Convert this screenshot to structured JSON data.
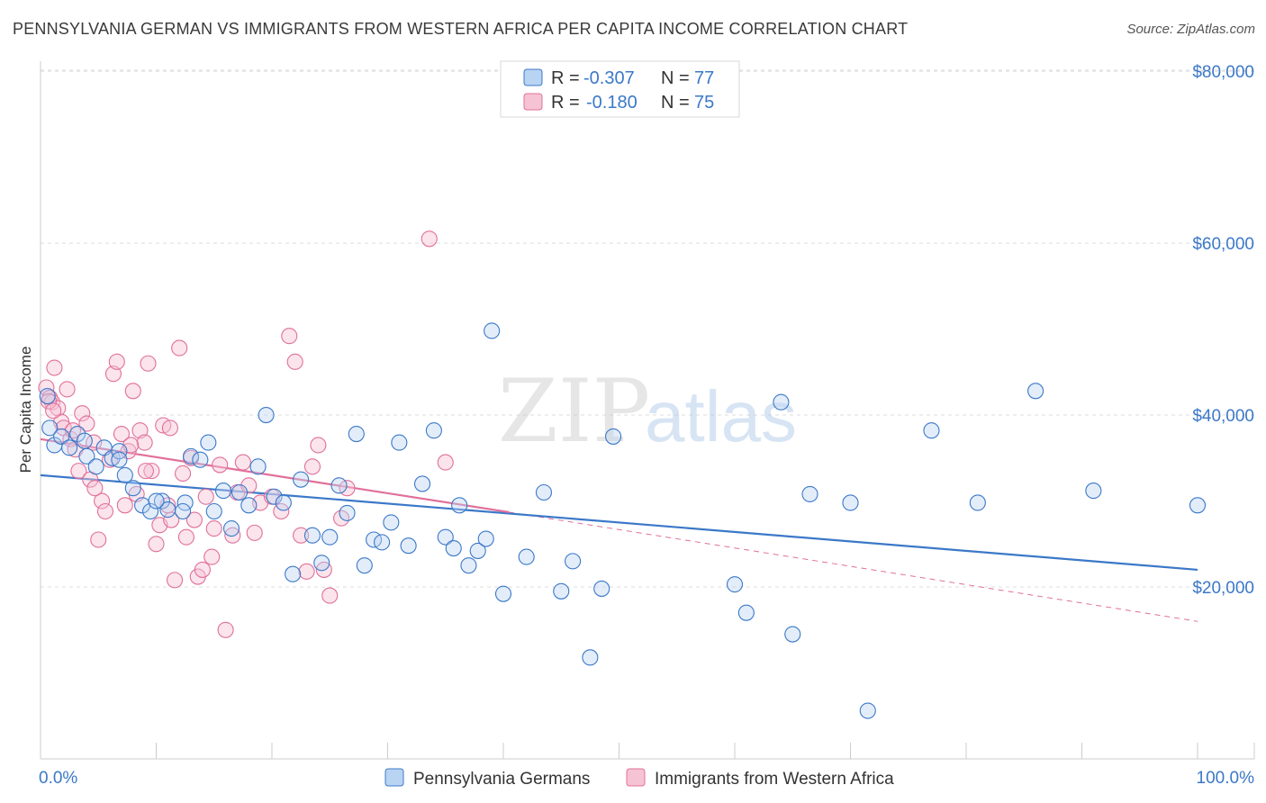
{
  "title": "PENNSYLVANIA GERMAN VS IMMIGRANTS FROM WESTERN AFRICA PER CAPITA INCOME CORRELATION CHART",
  "source": "Source: ZipAtlas.com",
  "watermark": {
    "zip": "ZIP",
    "atlas": "atlas"
  },
  "colors": {
    "blue": "#3b78c8",
    "blue_fill": "#b9d3f2",
    "pink": "#e0709a",
    "pink_fill": "#f6c3d4",
    "grid": "#dddddd"
  },
  "legend": {
    "r_label": "R =",
    "n_label": "N =",
    "rows": [
      {
        "r": "-0.307",
        "n": "77"
      },
      {
        "r": "-0.180",
        "n": "75"
      }
    ]
  },
  "chart_data": {
    "type": "scatter",
    "title": "PENNSYLVANIA GERMAN VS IMMIGRANTS FROM WESTERN AFRICA PER CAPITA INCOME CORRELATION CHART",
    "xlabel": "",
    "ylabel": "Per Capita Income",
    "xlim": [
      0,
      100
    ],
    "ylim": [
      0,
      82000
    ],
    "x_tick_labels": [
      "0.0%",
      "100.0%"
    ],
    "y_ticks": [
      20000,
      40000,
      60000,
      80000
    ],
    "y_tick_labels": [
      "$20,000",
      "$40,000",
      "$60,000",
      "$80,000"
    ],
    "grid": true,
    "legend_position": "top-center",
    "series": [
      {
        "name": "Pennsylvania Germans",
        "color": "#3b78c8",
        "trend": {
          "x": [
            0,
            100
          ],
          "y": [
            33000,
            22000
          ]
        },
        "points": [
          [
            0.8,
            38500
          ],
          [
            1.2,
            36500
          ],
          [
            1.8,
            37500
          ],
          [
            2.5,
            36200
          ],
          [
            3.2,
            37800
          ],
          [
            4.0,
            35200
          ],
          [
            4.8,
            34000
          ],
          [
            5.5,
            36200
          ],
          [
            6.2,
            35000
          ],
          [
            6.8,
            35800
          ],
          [
            7.3,
            33000
          ],
          [
            8.0,
            31500
          ],
          [
            8.8,
            29500
          ],
          [
            9.5,
            28800
          ],
          [
            10.5,
            30000
          ],
          [
            11.0,
            29000
          ],
          [
            12.5,
            29800
          ],
          [
            13.0,
            35200
          ],
          [
            13.8,
            34800
          ],
          [
            14.5,
            36800
          ],
          [
            15.0,
            28800
          ],
          [
            15.8,
            31200
          ],
          [
            16.5,
            26800
          ],
          [
            17.2,
            31000
          ],
          [
            18.0,
            29500
          ],
          [
            18.8,
            34000
          ],
          [
            19.5,
            40000
          ],
          [
            20.2,
            30500
          ],
          [
            21.0,
            29800
          ],
          [
            21.8,
            21500
          ],
          [
            22.5,
            32500
          ],
          [
            23.5,
            26000
          ],
          [
            24.3,
            22800
          ],
          [
            25.0,
            25800
          ],
          [
            25.8,
            31800
          ],
          [
            26.5,
            28600
          ],
          [
            27.3,
            37800
          ],
          [
            28.0,
            22500
          ],
          [
            28.8,
            25500
          ],
          [
            29.5,
            25200
          ],
          [
            30.3,
            27500
          ],
          [
            31.0,
            36800
          ],
          [
            31.8,
            24800
          ],
          [
            33.0,
            32000
          ],
          [
            34.0,
            38200
          ],
          [
            35.0,
            25800
          ],
          [
            35.7,
            24500
          ],
          [
            36.2,
            29500
          ],
          [
            37.0,
            22500
          ],
          [
            37.8,
            24200
          ],
          [
            38.5,
            25600
          ],
          [
            39.0,
            49800
          ],
          [
            40.0,
            19200
          ],
          [
            42.0,
            23500
          ],
          [
            43.5,
            31000
          ],
          [
            45.0,
            19500
          ],
          [
            46.0,
            23000
          ],
          [
            47.5,
            11800
          ],
          [
            48.5,
            19800
          ],
          [
            49.5,
            37500
          ],
          [
            60.0,
            20300
          ],
          [
            61.0,
            17000
          ],
          [
            64.0,
            41500
          ],
          [
            65.0,
            14500
          ],
          [
            66.5,
            30800
          ],
          [
            70.0,
            29800
          ],
          [
            71.5,
            5600
          ],
          [
            77.0,
            38200
          ],
          [
            81.0,
            29800
          ],
          [
            86.0,
            42800
          ],
          [
            91.0,
            31200
          ],
          [
            100.0,
            29500
          ],
          [
            0.6,
            42200
          ],
          [
            3.8,
            37000
          ],
          [
            6.8,
            34800
          ],
          [
            10.0,
            30000
          ],
          [
            12.3,
            28800
          ]
        ]
      },
      {
        "name": "Immigrants from Western Africa",
        "color": "#e0709a",
        "trend": {
          "x": [
            0,
            40.5
          ],
          "y": [
            37200,
            28700
          ]
        },
        "trend_dashed": {
          "x": [
            40.5,
            100
          ],
          "y": [
            28700,
            16000
          ]
        },
        "points": [
          [
            0.5,
            43200
          ],
          [
            0.8,
            42000
          ],
          [
            1.0,
            41500
          ],
          [
            1.2,
            45500
          ],
          [
            1.5,
            40800
          ],
          [
            1.8,
            39200
          ],
          [
            2.0,
            38500
          ],
          [
            2.3,
            43000
          ],
          [
            2.6,
            37200
          ],
          [
            3.0,
            36000
          ],
          [
            3.3,
            33500
          ],
          [
            3.6,
            40200
          ],
          [
            4.0,
            39000
          ],
          [
            4.3,
            32500
          ],
          [
            4.6,
            36800
          ],
          [
            5.0,
            25500
          ],
          [
            5.3,
            30000
          ],
          [
            5.6,
            28800
          ],
          [
            6.0,
            34800
          ],
          [
            6.3,
            44800
          ],
          [
            6.6,
            46200
          ],
          [
            7.0,
            37800
          ],
          [
            7.3,
            29500
          ],
          [
            7.6,
            35800
          ],
          [
            8.0,
            42800
          ],
          [
            8.3,
            30800
          ],
          [
            8.6,
            38200
          ],
          [
            9.0,
            36800
          ],
          [
            9.3,
            46000
          ],
          [
            9.6,
            33500
          ],
          [
            10.0,
            25000
          ],
          [
            10.3,
            27200
          ],
          [
            10.6,
            38800
          ],
          [
            11.0,
            29500
          ],
          [
            11.3,
            27800
          ],
          [
            11.6,
            20800
          ],
          [
            12.0,
            47800
          ],
          [
            12.3,
            33200
          ],
          [
            12.6,
            25800
          ],
          [
            13.0,
            35000
          ],
          [
            13.3,
            27800
          ],
          [
            13.6,
            21200
          ],
          [
            14.0,
            22000
          ],
          [
            14.3,
            30500
          ],
          [
            15.0,
            26800
          ],
          [
            15.5,
            34200
          ],
          [
            16.0,
            15000
          ],
          [
            17.0,
            31000
          ],
          [
            17.5,
            34500
          ],
          [
            18.0,
            31800
          ],
          [
            18.5,
            26300
          ],
          [
            19.0,
            29800
          ],
          [
            20.0,
            30500
          ],
          [
            21.5,
            49200
          ],
          [
            22.0,
            46200
          ],
          [
            22.5,
            26000
          ],
          [
            23.0,
            21800
          ],
          [
            23.5,
            34000
          ],
          [
            24.0,
            36500
          ],
          [
            24.5,
            22000
          ],
          [
            25.0,
            19000
          ],
          [
            26.0,
            28000
          ],
          [
            26.5,
            31500
          ],
          [
            33.6,
            60500
          ],
          [
            35.0,
            34500
          ],
          [
            0.7,
            41600
          ],
          [
            1.1,
            40500
          ],
          [
            2.8,
            38200
          ],
          [
            4.7,
            31500
          ],
          [
            7.8,
            36500
          ],
          [
            9.1,
            33500
          ],
          [
            11.2,
            38500
          ],
          [
            14.8,
            23500
          ],
          [
            16.6,
            26000
          ],
          [
            20.8,
            28800
          ]
        ]
      }
    ]
  },
  "bottom_legend": [
    {
      "label": "Pennsylvania Germans"
    },
    {
      "label": "Immigrants from Western Africa"
    }
  ]
}
